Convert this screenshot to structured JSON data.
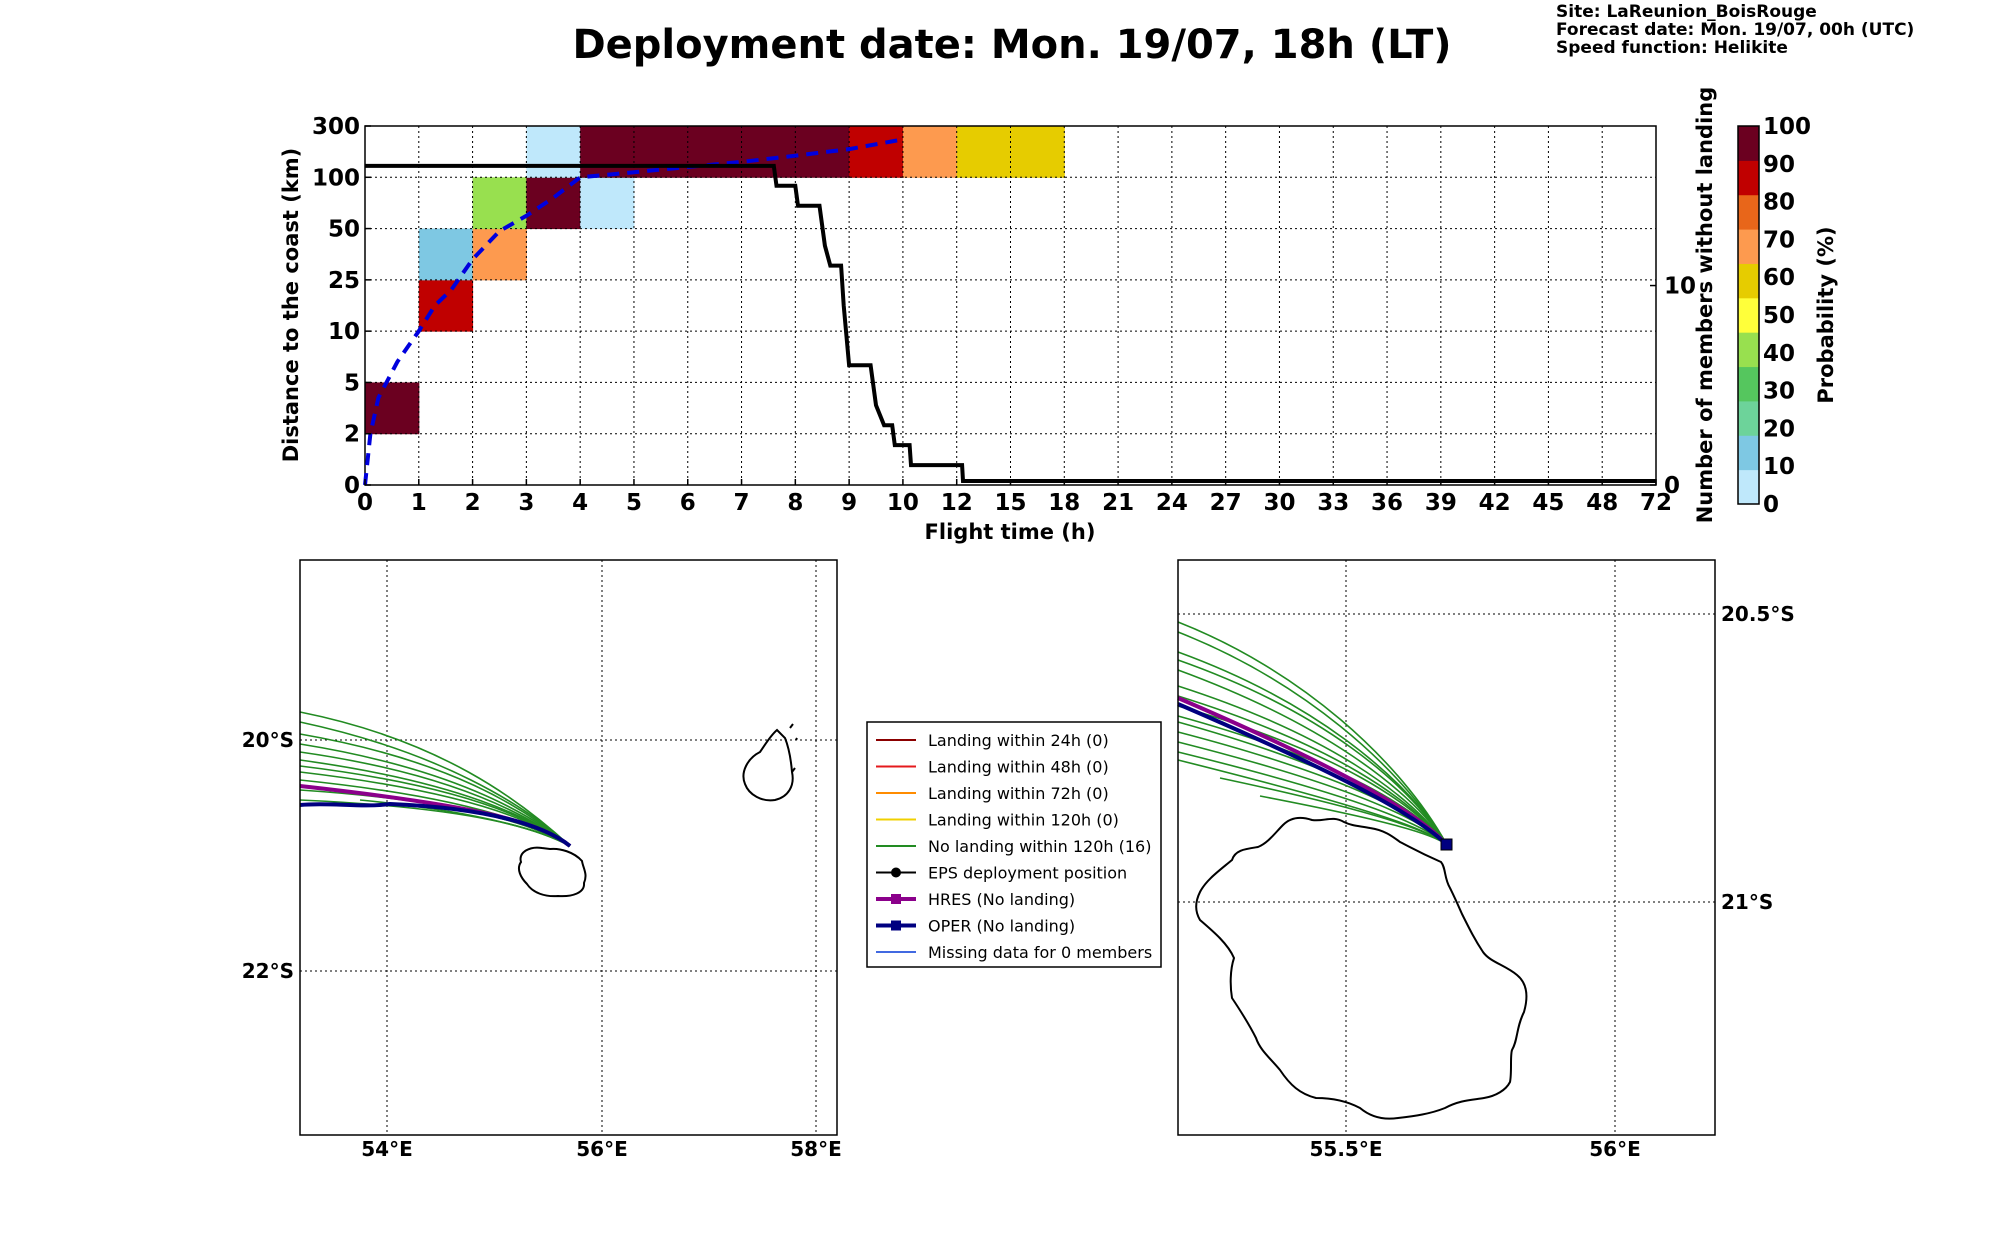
{
  "header": {
    "title": "Deployment date: Mon. 19/07, 18h (LT)",
    "site": "Site: LaReunion_BoisRouge",
    "forecast": "Forecast date: Mon. 19/07, 00h (UTC)",
    "speed": "Speed function: Helikite"
  },
  "chart_data": [
    {
      "type": "heatmap",
      "x_ticks": [
        "0",
        "1",
        "2",
        "3",
        "4",
        "5",
        "6",
        "7",
        "8",
        "9",
        "10",
        "12",
        "15",
        "18",
        "21",
        "24",
        "27",
        "30",
        "33",
        "36",
        "39",
        "42",
        "45",
        "48",
        "72"
      ],
      "y_ticks": [
        "0",
        "2",
        "5",
        "10",
        "25",
        "50",
        "100",
        "300"
      ],
      "xlabel": "Flight time (h)",
      "ylabel": "Distance to the coast (km)",
      "y2label": "Number of members without landing",
      "y2_ticks": [
        "0",
        "10"
      ],
      "colorbar": {
        "label": "Probability (%)",
        "ticks": [
          "0",
          "10",
          "20",
          "30",
          "40",
          "50",
          "60",
          "70",
          "80",
          "90",
          "100"
        ],
        "colors": [
          "#bfe8fb",
          "#7ec8e3",
          "#6dd39a",
          "#55c65e",
          "#98e04f",
          "#ffff3a",
          "#e6cc00",
          "#fd9a4f",
          "#e8661a",
          "#c00000",
          "#6b0020"
        ]
      },
      "cells": [
        {
          "x": 0,
          "y": 1,
          "color": "#6b0020"
        },
        {
          "x": 1,
          "y": 3,
          "color": "#c00000"
        },
        {
          "x": 1,
          "y": 4,
          "color": "#7ec8e3"
        },
        {
          "x": 2,
          "y": 4,
          "color": "#fd9a4f"
        },
        {
          "x": 2,
          "y": 5,
          "color": "#98e04f"
        },
        {
          "x": 3,
          "y": 5,
          "color": "#6b0020"
        },
        {
          "x": 3,
          "y": 6,
          "color": "#bfe8fb"
        },
        {
          "x": 4,
          "y": 5,
          "color": "#bfe8fb"
        },
        {
          "x": 4,
          "y": 6,
          "color": "#6b0020"
        },
        {
          "x": 5,
          "y": 6,
          "color": "#6b0020"
        },
        {
          "x": 6,
          "y": 6,
          "color": "#6b0020"
        },
        {
          "x": 7,
          "y": 6,
          "color": "#6b0020"
        },
        {
          "x": 8,
          "y": 6,
          "color": "#6b0020"
        },
        {
          "x": 9,
          "y": 6,
          "color": "#c00000"
        },
        {
          "x": 10,
          "y": 6,
          "color": "#fd9a4f"
        },
        {
          "x": 11,
          "y": 6,
          "color": "#e6cc00"
        },
        {
          "x": 12,
          "y": 6,
          "color": "#e6cc00"
        }
      ],
      "members_without_landing": [
        [
          0,
          16
        ],
        [
          7.6,
          16
        ],
        [
          7.65,
          15
        ],
        [
          8,
          15
        ],
        [
          8.05,
          14
        ],
        [
          8.45,
          14
        ],
        [
          8.55,
          12
        ],
        [
          8.65,
          11
        ],
        [
          8.85,
          11
        ],
        [
          8.9,
          9
        ],
        [
          9.0,
          6
        ],
        [
          9.4,
          6
        ],
        [
          9.5,
          4
        ],
        [
          9.65,
          3
        ],
        [
          9.8,
          3
        ],
        [
          9.85,
          2
        ],
        [
          10.25,
          2
        ],
        [
          10.3,
          1
        ],
        [
          12.3,
          1
        ],
        [
          12.35,
          0.2
        ],
        [
          72,
          0.2
        ]
      ],
      "median_distance": [
        [
          0,
          0
        ],
        [
          0.1,
          1
        ],
        [
          0.25,
          1.7
        ],
        [
          0.6,
          2.4
        ],
        [
          0.8,
          2.7
        ],
        [
          1.0,
          3.0
        ],
        [
          1.3,
          3.5
        ],
        [
          1.6,
          3.8
        ],
        [
          2.0,
          4.4
        ],
        [
          2.5,
          4.95
        ],
        [
          3.0,
          5.25
        ],
        [
          3.5,
          5.6
        ],
        [
          4.0,
          6.0
        ],
        [
          5.0,
          6.1
        ],
        [
          6.0,
          6.2
        ],
        [
          7.0,
          6.3
        ],
        [
          8.0,
          6.42
        ],
        [
          9.0,
          6.55
        ],
        [
          9.9,
          6.72
        ]
      ]
    }
  ],
  "map_left": {
    "x_ticks": [
      "54°E",
      "56°E",
      "58°E"
    ],
    "y_ticks": [
      "20°S",
      "22°S"
    ]
  },
  "map_right": {
    "x_ticks": [
      "55.5°E",
      "56°E"
    ],
    "y_ticks": [
      "20.5°S",
      "21°S"
    ]
  },
  "legend": {
    "items": [
      {
        "label": "Landing within 24h (0)",
        "color": "#8b0000",
        "marker": "none"
      },
      {
        "label": "Landing within 48h (0)",
        "color": "#e41a1c",
        "marker": "none"
      },
      {
        "label": "Landing within 72h (0)",
        "color": "#ff8c00",
        "marker": "none"
      },
      {
        "label": "Landing within 120h (0)",
        "color": "#f0d000",
        "marker": "none"
      },
      {
        "label": "No landing within 120h (16)",
        "color": "#228b22",
        "marker": "none"
      },
      {
        "label": "EPS deployment position",
        "color": "#000000",
        "marker": "circle"
      },
      {
        "label": "HRES (No landing)",
        "color": "#8b008b",
        "marker": "square"
      },
      {
        "label": "OPER (No landing)",
        "color": "#000080",
        "marker": "square"
      },
      {
        "label": "Missing data for 0 members",
        "color": "#4169e1",
        "marker": "none"
      }
    ]
  }
}
